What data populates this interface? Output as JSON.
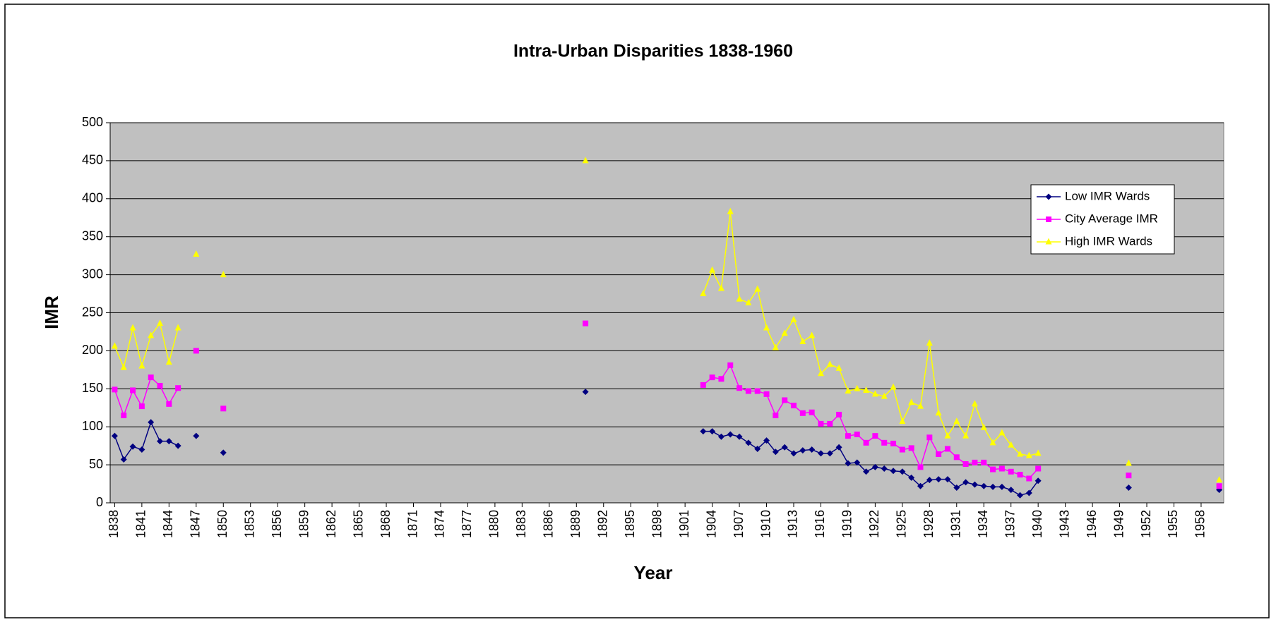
{
  "chart_data": {
    "type": "line",
    "title": "Intra-Urban Disparities 1838-1960",
    "x_label": "Year",
    "y_label": "IMR",
    "x": [
      1838,
      1839,
      1840,
      1841,
      1842,
      1843,
      1844,
      1845,
      1846,
      1847,
      1848,
      1850,
      1851,
      1890,
      1891,
      1903,
      1904,
      1905,
      1906,
      1907,
      1908,
      1909,
      1910,
      1911,
      1912,
      1913,
      1914,
      1915,
      1916,
      1917,
      1918,
      1919,
      1920,
      1921,
      1922,
      1923,
      1924,
      1925,
      1926,
      1927,
      1928,
      1929,
      1930,
      1931,
      1932,
      1933,
      1934,
      1935,
      1936,
      1937,
      1938,
      1939,
      1940,
      1941,
      1950,
      1951,
      1960
    ],
    "series": [
      {
        "name": "Low IMR Wards",
        "color": "#000080",
        "marker": "diamond",
        "values": [
          88,
          57,
          74,
          70,
          106,
          81,
          81,
          75,
          null,
          88,
          null,
          66,
          null,
          146,
          null,
          94,
          94,
          87,
          90,
          87,
          79,
          71,
          82,
          67,
          73,
          65,
          69,
          70,
          65,
          65,
          73,
          52,
          53,
          41,
          47,
          45,
          42,
          41,
          33,
          22,
          30,
          31,
          31,
          20,
          27,
          24,
          22,
          21,
          21,
          17,
          10,
          13,
          29,
          null,
          20,
          null,
          17
        ]
      },
      {
        "name": "City Average IMR",
        "color": "#ff00ff",
        "marker": "square",
        "values": [
          149,
          115,
          148,
          127,
          165,
          154,
          130,
          151,
          null,
          200,
          null,
          124,
          null,
          236,
          null,
          155,
          165,
          163,
          181,
          151,
          147,
          147,
          143,
          115,
          135,
          128,
          118,
          119,
          104,
          104,
          116,
          88,
          90,
          79,
          88,
          79,
          78,
          70,
          72,
          47,
          86,
          64,
          71,
          60,
          51,
          53,
          53,
          44,
          45,
          41,
          37,
          32,
          45,
          null,
          36,
          null,
          22
        ]
      },
      {
        "name": "High IMR Wards",
        "color": "#ffff00",
        "marker": "triangle",
        "values": [
          206,
          178,
          230,
          180,
          220,
          236,
          185,
          230,
          null,
          327,
          null,
          300,
          null,
          450,
          null,
          275,
          306,
          282,
          383,
          268,
          263,
          281,
          230,
          204,
          223,
          241,
          212,
          220,
          170,
          182,
          177,
          147,
          150,
          148,
          143,
          140,
          152,
          107,
          132,
          127,
          210,
          118,
          88,
          107,
          88,
          130,
          99,
          79,
          92,
          76,
          64,
          62,
          65,
          null,
          52,
          null,
          30
        ]
      }
    ],
    "xlim": [
      1837.5,
      1960.5
    ],
    "xticks": [
      1838,
      1841,
      1844,
      1847,
      1850,
      1853,
      1856,
      1859,
      1862,
      1865,
      1868,
      1871,
      1874,
      1877,
      1880,
      1883,
      1886,
      1889,
      1892,
      1895,
      1898,
      1901,
      1904,
      1907,
      1910,
      1913,
      1916,
      1919,
      1922,
      1925,
      1928,
      1931,
      1934,
      1937,
      1940,
      1943,
      1946,
      1949,
      1952,
      1955,
      1958
    ],
    "ylim": [
      0,
      500
    ],
    "yticks": [
      0,
      50,
      100,
      150,
      200,
      250,
      300,
      350,
      400,
      450,
      500
    ],
    "grid": true,
    "plot_background": "#c0c0c0",
    "legend": "upper right"
  }
}
